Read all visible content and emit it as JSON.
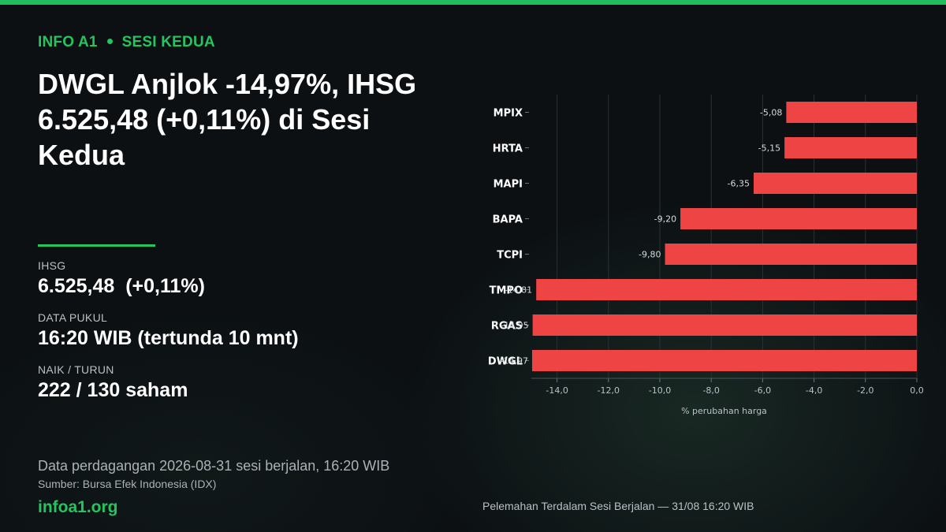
{
  "header": {
    "kicker_brand": "INFO A1",
    "kicker_section": "SESI KEDUA",
    "headline": "DWGL Anjlok -14,97%, IHSG 6.525,48 (+0,11%) di Sesi Kedua"
  },
  "stats": [
    {
      "label": "IHSG",
      "value": "6.525,48  (+0,11%)"
    },
    {
      "label": "DATA PUKUL",
      "value": "16:20 WIB (tertunda 10 mnt)"
    },
    {
      "label": "NAIK / TURUN",
      "value": "222 / 130 saham"
    }
  ],
  "footer": {
    "data_note": "Data perdagangan 2026-08-31 sesi berjalan, 16:20 WIB",
    "source": "Sumber: Bursa Efek Indonesia (IDX)",
    "brand_url": "infoa1.org"
  },
  "colors": {
    "accent": "#22c55e",
    "bar": "#ef4444",
    "background": "#0c1013"
  },
  "chart_data": {
    "type": "bar",
    "orientation": "horizontal",
    "categories": [
      "MPIX",
      "HRTA",
      "MAPI",
      "BAPA",
      "TCPI",
      "TMPO",
      "RGAS",
      "DWGL"
    ],
    "values": [
      -5.08,
      -5.15,
      -6.35,
      -9.2,
      -9.8,
      -14.81,
      -14.95,
      -14.97
    ],
    "data_labels": [
      "-5,08",
      "-5,15",
      "-6,35",
      "-9,20",
      "-9,80",
      "-14,81",
      "-14,95",
      "-14,97"
    ],
    "xlim": [
      -15.0,
      0.0
    ],
    "xticks": [
      -14.0,
      -12.0,
      -10.0,
      -8.0,
      -6.0,
      -4.0,
      -2.0,
      0.0
    ],
    "xtick_labels": [
      "-14,0",
      "-12,0",
      "-10,0",
      "-8,0",
      "-6,0",
      "-4,0",
      "-2,0",
      "0,0"
    ],
    "xlabel": "% perubahan harga",
    "ylabel": "",
    "grid": "vertical",
    "caption": "Pelemahan Terdalam Sesi Berjalan — 31/08 16:20 WIB"
  }
}
